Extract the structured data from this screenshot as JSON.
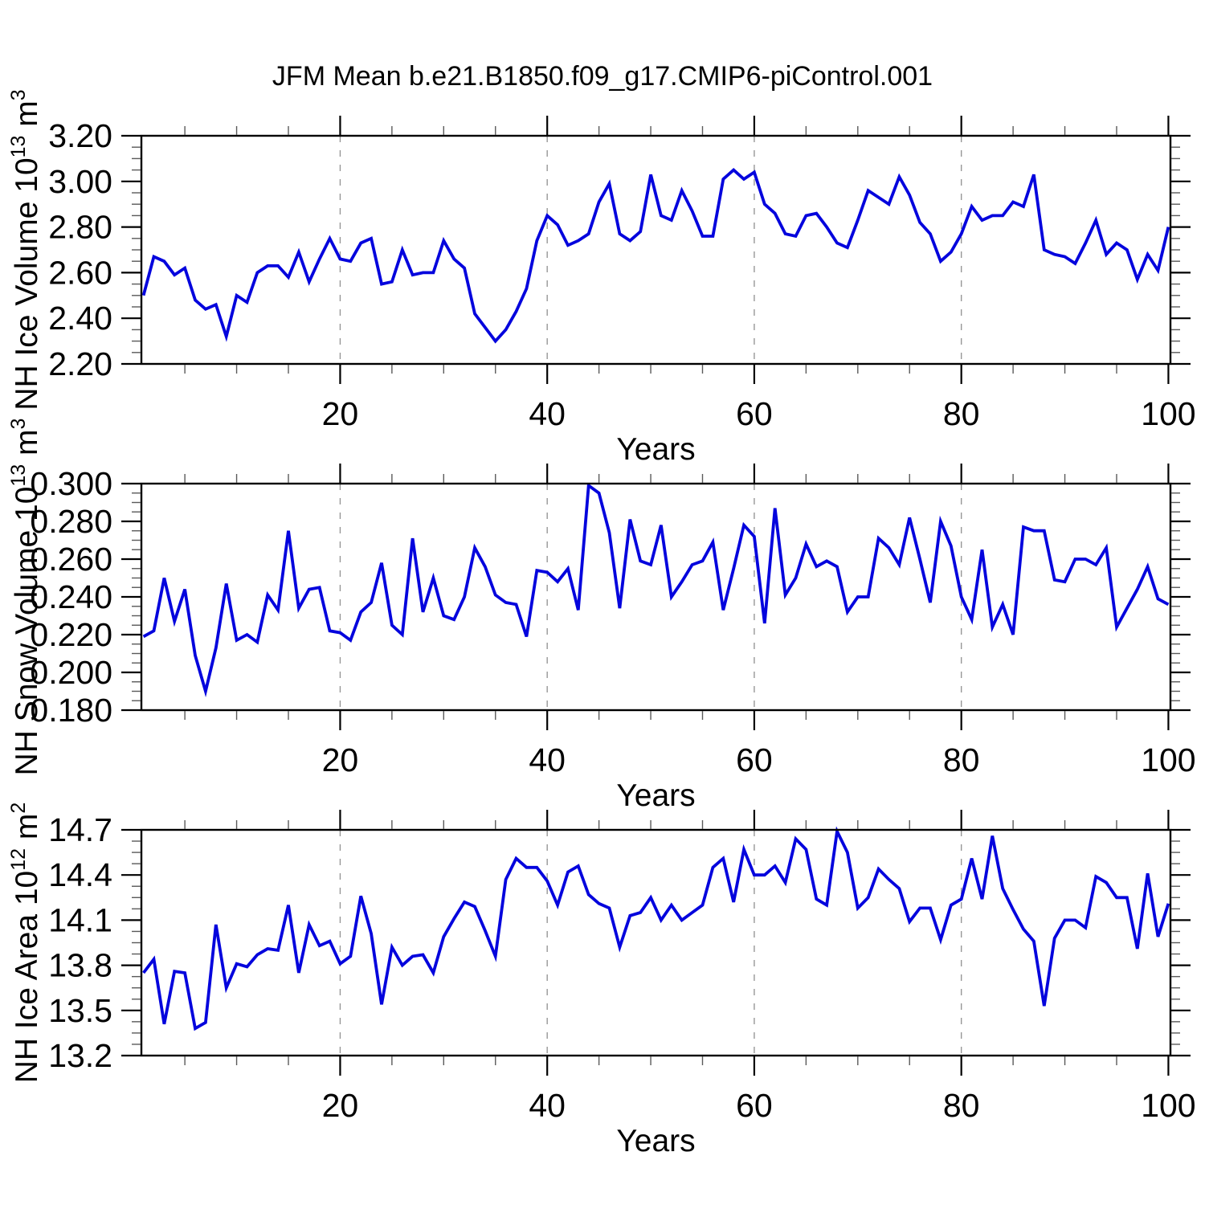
{
  "title": "JFM Mean b.e21.B1850.f09_g17.CMIP6-piControl.001",
  "colors": {
    "line": "#0404dd",
    "axis": "#000000",
    "minor_tick": "#5a5a5a",
    "grid_dash": "#979797",
    "background": "#ffffff",
    "text": "#000000"
  },
  "x_axis": {
    "label": "Years",
    "start_year": 1,
    "end_year": 100,
    "major_ticks": [
      20,
      40,
      60,
      80,
      100
    ],
    "major_tick_labels": [
      "20",
      "40",
      "60",
      "80",
      "100"
    ],
    "minor_step": 5,
    "range": [
      0.8,
      100.2
    ],
    "dashed_gridlines": [
      20,
      40,
      60,
      80
    ]
  },
  "chart_data": [
    {
      "type": "line",
      "id": "nh-ice-volume",
      "title": "",
      "ylabel_plain": "NH Ice Volume 10^13 m^3",
      "ylabel_segments": [
        [
          "NH Ice Volume 10",
          0
        ],
        [
          "13",
          1
        ],
        [
          " m",
          0
        ],
        [
          "3",
          1
        ]
      ],
      "xlabel": "Years",
      "ylim": [
        2.2,
        3.2
      ],
      "ytick_values": [
        2.2,
        2.4,
        2.6,
        2.8,
        3.0,
        3.2
      ],
      "ytick_labels": [
        "2.20",
        "2.40",
        "2.60",
        "2.80",
        "3.00",
        "3.20"
      ],
      "y_minor_step": 0.05,
      "grid": "vertical-dashed-only",
      "legend": "none",
      "values": [
        2.5,
        2.67,
        2.65,
        2.59,
        2.62,
        2.48,
        2.44,
        2.46,
        2.32,
        2.5,
        2.47,
        2.6,
        2.63,
        2.63,
        2.58,
        2.69,
        2.56,
        2.66,
        2.75,
        2.66,
        2.65,
        2.73,
        2.75,
        2.55,
        2.56,
        2.7,
        2.59,
        2.6,
        2.6,
        2.74,
        2.66,
        2.62,
        2.42,
        2.36,
        2.3,
        2.35,
        2.43,
        2.53,
        2.74,
        2.85,
        2.81,
        2.72,
        2.74,
        2.77,
        2.91,
        2.99,
        2.77,
        2.74,
        2.78,
        3.03,
        2.85,
        2.83,
        2.96,
        2.87,
        2.76,
        2.76,
        3.01,
        3.05,
        3.01,
        3.04,
        2.9,
        2.86,
        2.77,
        2.76,
        2.85,
        2.86,
        2.8,
        2.73,
        2.71,
        2.83,
        2.96,
        2.93,
        2.9,
        3.02,
        2.94,
        2.82,
        2.77,
        2.65,
        2.69,
        2.77,
        2.89,
        2.83,
        2.85,
        2.85,
        2.91,
        2.89,
        3.03,
        2.7,
        2.68,
        2.67,
        2.64,
        2.73,
        2.83,
        2.68,
        2.73,
        2.7,
        2.57,
        2.68,
        2.61,
        2.8
      ]
    },
    {
      "type": "line",
      "id": "nh-snow-volume",
      "title": "",
      "ylabel_plain": "NH Snow Volume 10^13 m^3",
      "ylabel_segments": [
        [
          "NH Snow Volume 10",
          0
        ],
        [
          "13",
          1
        ],
        [
          " m",
          0
        ],
        [
          "3",
          1
        ]
      ],
      "xlabel": "Years",
      "ylim": [
        0.18,
        0.3
      ],
      "ytick_values": [
        0.18,
        0.2,
        0.22,
        0.24,
        0.26,
        0.28,
        0.3
      ],
      "ytick_labels": [
        "0.180",
        "0.200",
        "0.220",
        "0.240",
        "0.260",
        "0.280",
        "0.300"
      ],
      "y_minor_step": 0.005,
      "grid": "vertical-dashed-only",
      "legend": "none",
      "values": [
        0.219,
        0.222,
        0.25,
        0.227,
        0.244,
        0.209,
        0.19,
        0.213,
        0.247,
        0.217,
        0.22,
        0.216,
        0.241,
        0.233,
        0.275,
        0.234,
        0.244,
        0.245,
        0.222,
        0.221,
        0.217,
        0.232,
        0.237,
        0.258,
        0.225,
        0.22,
        0.271,
        0.232,
        0.25,
        0.23,
        0.228,
        0.24,
        0.266,
        0.256,
        0.241,
        0.237,
        0.236,
        0.219,
        0.254,
        0.253,
        0.248,
        0.255,
        0.233,
        0.299,
        0.295,
        0.274,
        0.234,
        0.281,
        0.259,
        0.257,
        0.278,
        0.24,
        0.248,
        0.257,
        0.259,
        0.269,
        0.233,
        0.255,
        0.278,
        0.272,
        0.226,
        0.287,
        0.241,
        0.25,
        0.268,
        0.256,
        0.259,
        0.256,
        0.232,
        0.24,
        0.24,
        0.271,
        0.266,
        0.257,
        0.282,
        0.26,
        0.237,
        0.28,
        0.267,
        0.24,
        0.228,
        0.265,
        0.224,
        0.236,
        0.22,
        0.277,
        0.275,
        0.275,
        0.249,
        0.248,
        0.26,
        0.26,
        0.257,
        0.266,
        0.224,
        0.234,
        0.244,
        0.256,
        0.239,
        0.236
      ]
    },
    {
      "type": "line",
      "id": "nh-ice-area",
      "title": "",
      "ylabel_plain": "NH Ice Area 10^12 m^2",
      "ylabel_segments": [
        [
          "NH Ice Area 10",
          0
        ],
        [
          "12",
          1
        ],
        [
          " m",
          0
        ],
        [
          "2",
          1
        ]
      ],
      "xlabel": "Years",
      "ylim": [
        13.2,
        14.7
      ],
      "ytick_values": [
        13.2,
        13.5,
        13.8,
        14.1,
        14.4,
        14.7
      ],
      "ytick_labels": [
        "13.2",
        "13.5",
        "13.8",
        "14.1",
        "14.4",
        "14.7"
      ],
      "y_minor_step": 0.075,
      "grid": "vertical-dashed-only",
      "legend": "none",
      "values": [
        13.75,
        13.84,
        13.41,
        13.76,
        13.75,
        13.38,
        13.42,
        14.07,
        13.65,
        13.81,
        13.79,
        13.87,
        13.91,
        13.9,
        14.2,
        13.75,
        14.07,
        13.93,
        13.96,
        13.81,
        13.86,
        14.26,
        14.01,
        13.54,
        13.92,
        13.8,
        13.86,
        13.87,
        13.75,
        13.99,
        14.11,
        14.22,
        14.19,
        14.03,
        13.86,
        14.37,
        14.51,
        14.45,
        14.45,
        14.36,
        14.2,
        14.42,
        14.46,
        14.27,
        14.21,
        14.18,
        13.92,
        14.13,
        14.15,
        14.25,
        14.1,
        14.2,
        14.1,
        14.15,
        14.2,
        14.45,
        14.51,
        14.22,
        14.57,
        14.4,
        14.4,
        14.46,
        14.35,
        14.64,
        14.57,
        14.24,
        14.2,
        14.69,
        14.55,
        14.18,
        14.25,
        14.44,
        14.37,
        14.31,
        14.09,
        14.18,
        14.18,
        13.97,
        14.2,
        14.24,
        14.51,
        14.24,
        14.66,
        14.31,
        14.17,
        14.04,
        13.96,
        13.53,
        13.98,
        14.1,
        14.1,
        14.05,
        14.39,
        14.35,
        14.25,
        14.25,
        13.91,
        14.41,
        13.99,
        14.21
      ]
    }
  ]
}
